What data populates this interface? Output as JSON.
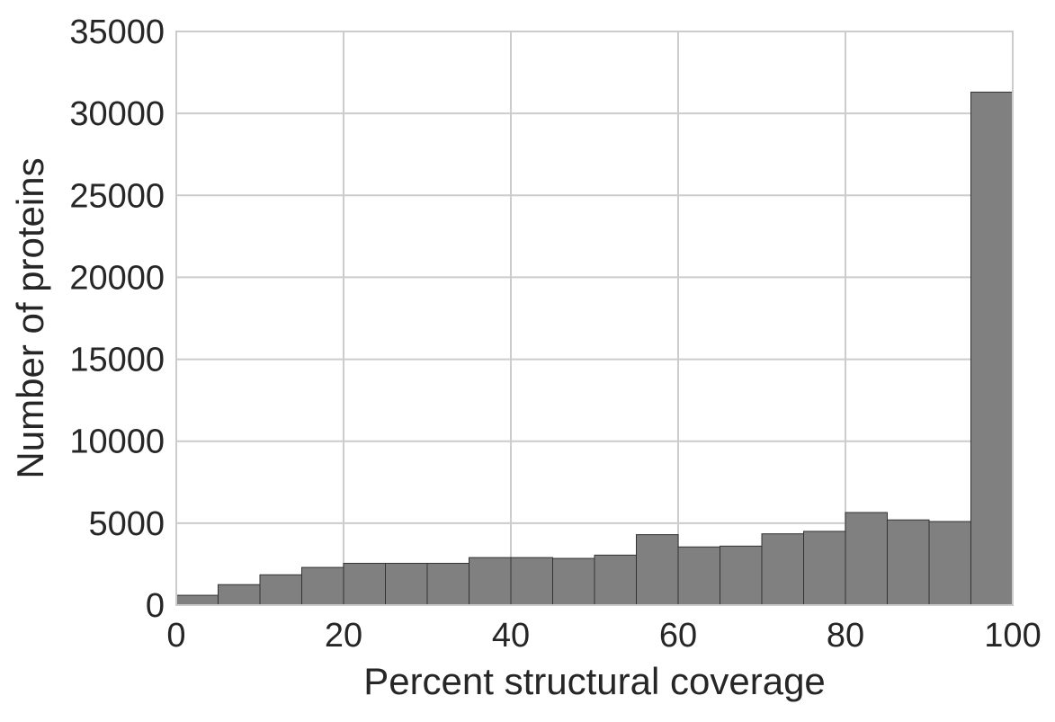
{
  "chart_data": {
    "type": "bar",
    "title": "",
    "xlabel": "Percent structural coverage",
    "ylabel": "Number of proteins",
    "xlim": [
      0,
      100
    ],
    "ylim": [
      0,
      35000
    ],
    "x_ticks": [
      0,
      20,
      40,
      60,
      80,
      100
    ],
    "x_tick_labels": [
      "0",
      "20",
      "40",
      "60",
      "80",
      "100"
    ],
    "y_ticks": [
      0,
      5000,
      10000,
      15000,
      20000,
      25000,
      30000,
      35000
    ],
    "y_tick_labels": [
      "0",
      "5000",
      "10000",
      "15000",
      "20000",
      "25000",
      "30000",
      "35000"
    ],
    "bin_edges": [
      0,
      5,
      10,
      15,
      20,
      25,
      30,
      35,
      40,
      45,
      50,
      55,
      60,
      65,
      70,
      75,
      80,
      85,
      90,
      95,
      100
    ],
    "values": [
      600,
      1250,
      1850,
      2300,
      2550,
      2550,
      2550,
      2900,
      2900,
      2850,
      3050,
      4300,
      3550,
      3600,
      4350,
      4500,
      5650,
      5200,
      5100,
      31300
    ],
    "grid": true,
    "bar_color": "#808080",
    "bar_edge_color": "#333333",
    "grid_color": "#cccccc"
  }
}
